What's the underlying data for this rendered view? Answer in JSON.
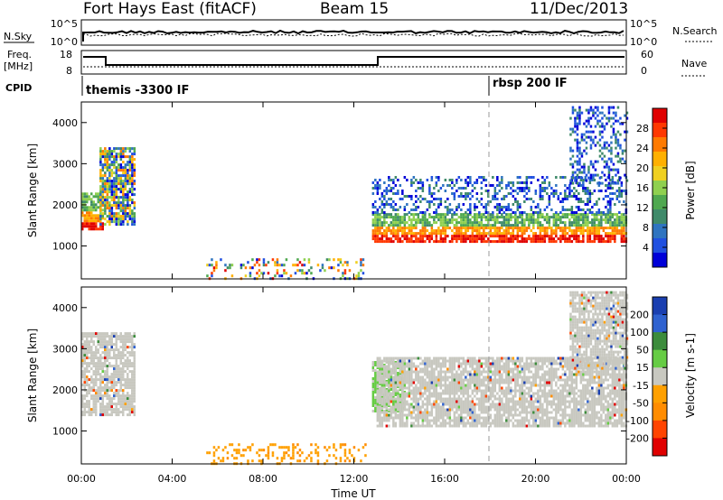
{
  "header": {
    "station": "Fort Hays East (fitACF)",
    "beam": "Beam 15",
    "date": "11/Dec/2013"
  },
  "noise_panel": {
    "left_label": "N.Sky",
    "left_ticks": [
      "10^5",
      "10^0"
    ],
    "right_label": "N.Search",
    "right_ticks": [
      "10^5",
      "10^0"
    ]
  },
  "freq_panel": {
    "left_label_1": "Freq.",
    "left_label_2": "[MHz]",
    "left_ticks": [
      "18",
      "8"
    ],
    "right_label": "Nave",
    "right_ticks": [
      "60",
      "0"
    ]
  },
  "cpid_panel": {
    "label": "CPID",
    "segments": [
      "themis -3300 IF",
      "rbsp 200 IF"
    ]
  },
  "chart_data": [
    {
      "type": "heatmap",
      "name": "power",
      "ylabel": "Slant Range [km]",
      "yticks": [
        "1000",
        "2000",
        "3000",
        "4000"
      ],
      "ylim": [
        200,
        4500
      ],
      "colorbar": {
        "label": "Power [dB]",
        "ticks": [
          "4",
          "8",
          "12",
          "16",
          "20",
          "24",
          "28"
        ],
        "range": [
          0,
          32
        ],
        "colors": [
          "#0000d8",
          "#2050e0",
          "#2f74c0",
          "#3f8a6a",
          "#4fa84f",
          "#8fd04f",
          "#f0d020",
          "#ffb000",
          "#ff7a00",
          "#ff3800",
          "#e00000"
        ]
      },
      "echo_regions": [
        {
          "t": [
            0.0,
            0.9
          ],
          "r": [
            1400,
            2300
          ],
          "level": "strong"
        },
        {
          "t": [
            0.8,
            2.3
          ],
          "r": [
            1500,
            3400
          ],
          "level": "mixed"
        },
        {
          "t": [
            5.5,
            12.5
          ],
          "r": [
            200,
            700
          ],
          "level": "sparse"
        },
        {
          "t": [
            12.8,
            24.0
          ],
          "r": [
            1100,
            1800
          ],
          "level": "strong"
        },
        {
          "t": [
            12.8,
            24.0
          ],
          "r": [
            1800,
            2700
          ],
          "level": "weak"
        },
        {
          "t": [
            21.5,
            24.0
          ],
          "r": [
            2500,
            4400
          ],
          "level": "weak"
        }
      ]
    },
    {
      "type": "heatmap",
      "name": "velocity",
      "xlabel": "Time UT",
      "xticks": [
        "00:00",
        "04:00",
        "08:00",
        "12:00",
        "16:00",
        "20:00",
        "00:00"
      ],
      "xlim": [
        0,
        24
      ],
      "ylabel": "Slant Range [km]",
      "yticks": [
        "1000",
        "2000",
        "3000",
        "4000"
      ],
      "ylim": [
        200,
        4500
      ],
      "colorbar": {
        "label": "Velocity [m s-1]",
        "ticks": [
          "200",
          "100",
          "50",
          "15",
          "-15",
          "-50",
          "-100",
          "-200"
        ],
        "colors": [
          "#1a3fb0",
          "#2f62d0",
          "#3c8c3c",
          "#66cc44",
          "#c8c8c0",
          "#ffa000",
          "#ff8c00",
          "#ff4400",
          "#e00000"
        ]
      },
      "echo_regions": [
        {
          "t": [
            0.0,
            2.3
          ],
          "r": [
            1400,
            3400
          ],
          "level": "ground"
        },
        {
          "t": [
            5.5,
            12.5
          ],
          "r": [
            200,
            700
          ],
          "level": "negative"
        },
        {
          "t": [
            12.8,
            14.2
          ],
          "r": [
            1500,
            2700
          ],
          "level": "positive"
        },
        {
          "t": [
            13.0,
            24.0
          ],
          "r": [
            1100,
            2800
          ],
          "level": "ground"
        },
        {
          "t": [
            21.5,
            24.0
          ],
          "r": [
            2500,
            4400
          ],
          "level": "ground"
        }
      ]
    }
  ]
}
